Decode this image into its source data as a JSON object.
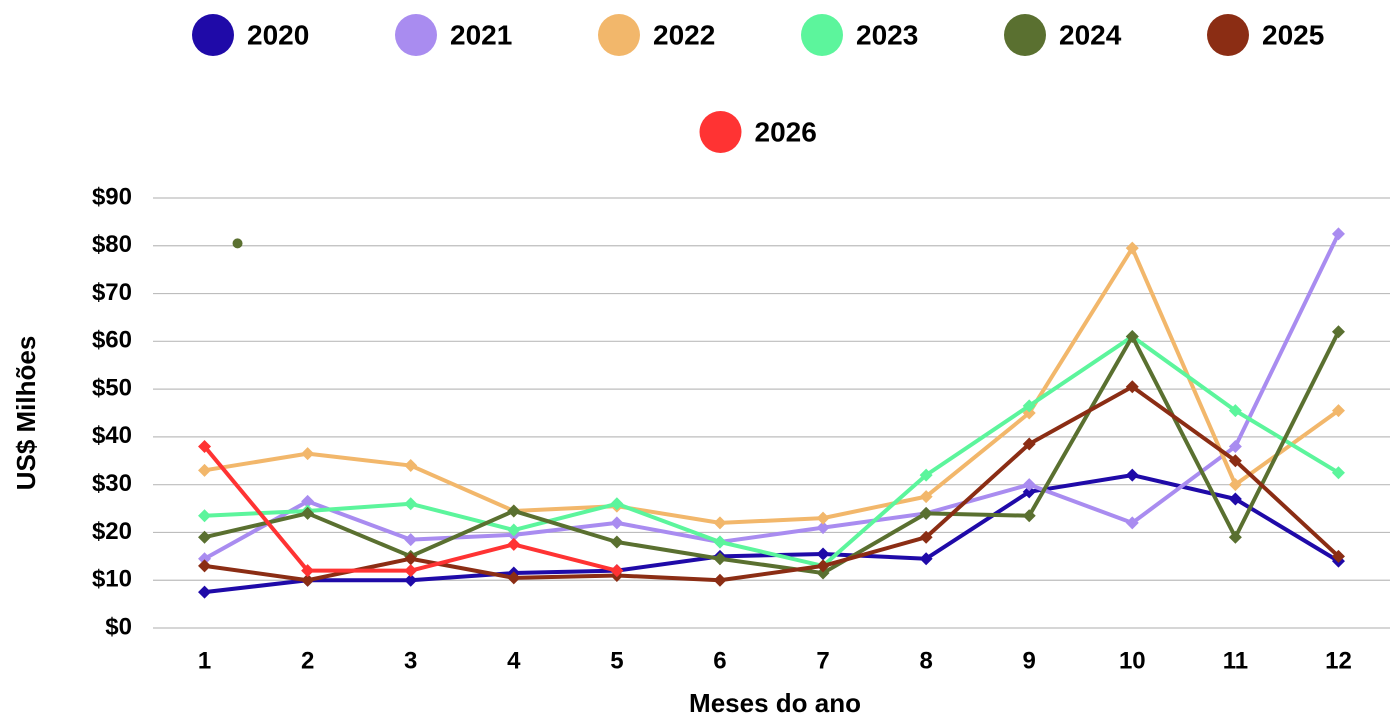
{
  "chart_data": {
    "type": "line",
    "x_label": "Meses do ano",
    "y_label": "US$ Milhões",
    "categories": [
      "1",
      "2",
      "3",
      "4",
      "5",
      "6",
      "7",
      "8",
      "9",
      "10",
      "11",
      "12"
    ],
    "series": [
      {
        "name": "2020",
        "color": "#1f0aa8",
        "values": [
          7.5,
          10,
          10,
          11.5,
          12,
          15,
          15.5,
          14.5,
          28.5,
          32,
          27,
          14
        ]
      },
      {
        "name": "2021",
        "color": "#a98cf0",
        "values": [
          14.5,
          26.5,
          18.5,
          19.5,
          22,
          18,
          21,
          24,
          30,
          22,
          38,
          82.5
        ]
      },
      {
        "name": "2022",
        "color": "#f2b76b",
        "values": [
          33,
          36.5,
          34,
          24.5,
          25.5,
          22,
          23,
          27.5,
          45,
          79.5,
          30,
          45.5
        ]
      },
      {
        "name": "2023",
        "color": "#5cf59c",
        "values": [
          23.5,
          24.5,
          26,
          20.5,
          26,
          18,
          13,
          32,
          46.5,
          61,
          45.5,
          32.5
        ]
      },
      {
        "name": "2024",
        "color": "#5a7030",
        "values": [
          19,
          24,
          15,
          24.5,
          18,
          14.5,
          11.5,
          24,
          23.5,
          61,
          19,
          62
        ]
      },
      {
        "name": "2025",
        "color": "#8b2d14",
        "values": [
          13,
          10,
          14.5,
          10.5,
          11,
          10,
          13,
          19,
          38.5,
          50.5,
          35,
          15
        ]
      },
      {
        "name": "2026",
        "color": "#ff3333",
        "values": [
          38,
          12,
          12,
          17.5,
          12,
          null,
          null,
          null,
          null,
          null,
          null,
          null
        ]
      }
    ],
    "markers": [
      {
        "x": 1.32,
        "y": 80.5,
        "color": "#5a7030"
      }
    ],
    "ylim": [
      0,
      90
    ],
    "yticks": [
      {
        "value": 0,
        "label": "$0"
      },
      {
        "value": 10,
        "label": "$10"
      },
      {
        "value": 20,
        "label": "$20"
      },
      {
        "value": 30,
        "label": "$30"
      },
      {
        "value": 40,
        "label": "$40"
      },
      {
        "value": 50,
        "label": "$50"
      },
      {
        "value": 60,
        "label": "$60"
      },
      {
        "value": 70,
        "label": "$70"
      },
      {
        "value": 80,
        "label": "$80"
      },
      {
        "value": 90,
        "label": "$90"
      }
    ],
    "grid": true,
    "legend": "top"
  }
}
